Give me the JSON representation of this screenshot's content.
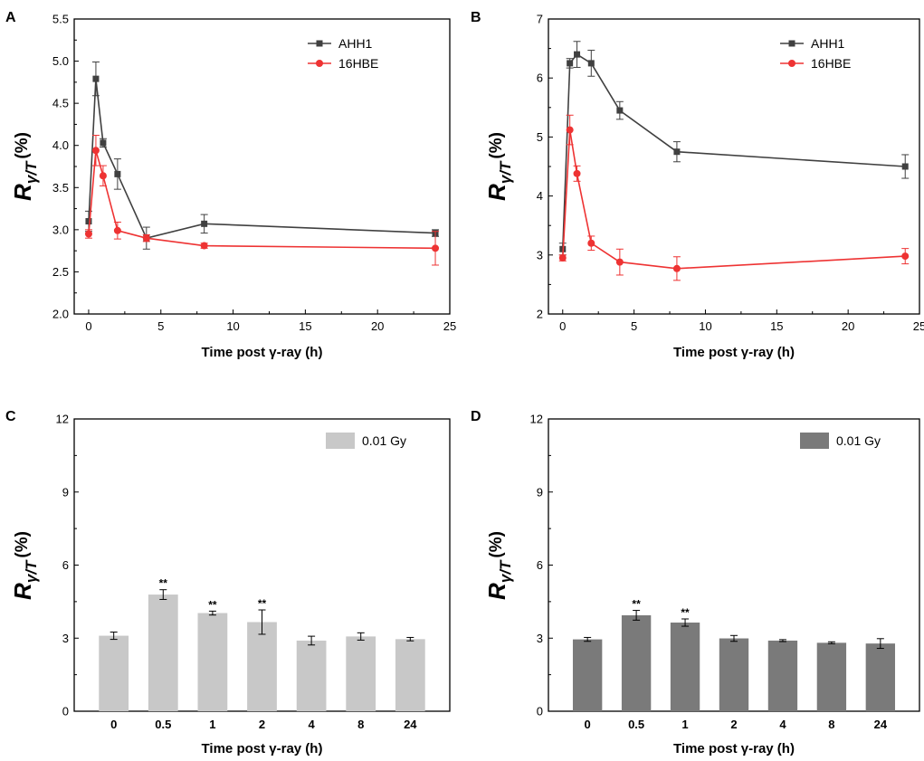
{
  "figure": {
    "background": "#ffffff"
  },
  "chart_data": [
    {
      "panel": "A",
      "type": "line",
      "title": "",
      "xlabel": "Time post γ-ray (h)",
      "ylabel_main": "R",
      "ylabel_sub": "γ/T",
      "ylabel_unit": "(%)",
      "xlim": [
        -1,
        25
      ],
      "ylim": [
        2.0,
        5.5
      ],
      "xticks": [
        0,
        5,
        10,
        15,
        20,
        25
      ],
      "yticks": [
        2.0,
        2.5,
        3.0,
        3.5,
        4.0,
        4.5,
        5.0,
        5.5
      ],
      "ytick_labels": [
        "2.0",
        "2.5",
        "3.0",
        "3.5",
        "4.0",
        "4.5",
        "5.0",
        "5.5"
      ],
      "x": [
        0,
        0.5,
        1,
        2,
        4,
        8,
        24
      ],
      "legend_position": "top-right",
      "series": [
        {
          "name": "AHH1",
          "color": "#404040",
          "marker": "square",
          "values": [
            3.1,
            4.79,
            4.03,
            3.66,
            2.9,
            3.07,
            2.96
          ],
          "errors": [
            0.12,
            0.2,
            0.05,
            0.18,
            0.13,
            0.11,
            0.04
          ]
        },
        {
          "name": "16HBE",
          "color": "#ee3333",
          "marker": "circle",
          "values": [
            2.95,
            3.94,
            3.64,
            2.99,
            2.9,
            2.81,
            2.78
          ],
          "errors": [
            0.05,
            0.18,
            0.12,
            0.1,
            0.04,
            0.03,
            0.2
          ]
        }
      ]
    },
    {
      "panel": "B",
      "type": "line",
      "title": "",
      "xlabel": "Time post γ-ray (h)",
      "ylabel_main": "R",
      "ylabel_sub": "γ/T",
      "ylabel_unit": "(%)",
      "xlim": [
        -1,
        25
      ],
      "ylim": [
        2,
        7
      ],
      "xticks": [
        0,
        5,
        10,
        15,
        20,
        25
      ],
      "yticks": [
        2,
        3,
        4,
        5,
        6,
        7
      ],
      "ytick_labels": [
        "2",
        "3",
        "4",
        "5",
        "6",
        "7"
      ],
      "x": [
        0,
        0.5,
        1,
        2,
        4,
        8,
        24
      ],
      "legend_position": "top-right",
      "series": [
        {
          "name": "AHH1",
          "color": "#404040",
          "marker": "square",
          "values": [
            3.1,
            6.25,
            6.4,
            6.25,
            5.45,
            4.75,
            4.5
          ],
          "errors": [
            0.1,
            0.08,
            0.22,
            0.22,
            0.15,
            0.17,
            0.2
          ]
        },
        {
          "name": "16HBE",
          "color": "#ee3333",
          "marker": "circle",
          "values": [
            2.95,
            5.12,
            4.38,
            3.2,
            2.88,
            2.77,
            2.98
          ],
          "errors": [
            0.05,
            0.25,
            0.13,
            0.12,
            0.22,
            0.2,
            0.13
          ]
        }
      ]
    },
    {
      "panel": "C",
      "type": "bar",
      "title": "",
      "xlabel": "Time post γ-ray (h)",
      "ylabel_main": "R",
      "ylabel_sub": "γ/T",
      "ylabel_unit": "(%)",
      "categories": [
        "0",
        "0.5",
        "1",
        "2",
        "4",
        "8",
        "24"
      ],
      "ylim": [
        0,
        12
      ],
      "yticks": [
        0,
        3,
        6,
        9,
        12
      ],
      "ytick_labels": [
        "0",
        "3",
        "6",
        "9",
        "12"
      ],
      "legend_position": "top-right",
      "series": [
        {
          "name": "0.01 Gy",
          "color": "#c8c8c8",
          "values": [
            3.1,
            4.79,
            4.03,
            3.66,
            2.9,
            3.07,
            2.96
          ],
          "errors": [
            0.15,
            0.2,
            0.08,
            0.5,
            0.18,
            0.15,
            0.07
          ]
        }
      ],
      "annotations": [
        "",
        "**",
        "**",
        "**",
        "",
        "",
        ""
      ]
    },
    {
      "panel": "D",
      "type": "bar",
      "title": "",
      "xlabel": "Time post γ-ray (h)",
      "ylabel_main": "R",
      "ylabel_sub": "γ/T",
      "ylabel_unit": "(%)",
      "categories": [
        "0",
        "0.5",
        "1",
        "2",
        "4",
        "8",
        "24"
      ],
      "ylim": [
        0,
        12
      ],
      "yticks": [
        0,
        3,
        6,
        9,
        12
      ],
      "ytick_labels": [
        "0",
        "3",
        "6",
        "9",
        "12"
      ],
      "legend_position": "top-right",
      "series": [
        {
          "name": "0.01 Gy",
          "color": "#7a7a7a",
          "values": [
            2.95,
            3.94,
            3.64,
            2.99,
            2.9,
            2.81,
            2.78
          ],
          "errors": [
            0.08,
            0.2,
            0.15,
            0.12,
            0.04,
            0.04,
            0.2
          ]
        }
      ],
      "annotations": [
        "",
        "**",
        "**",
        "",
        "",
        "",
        ""
      ]
    }
  ]
}
